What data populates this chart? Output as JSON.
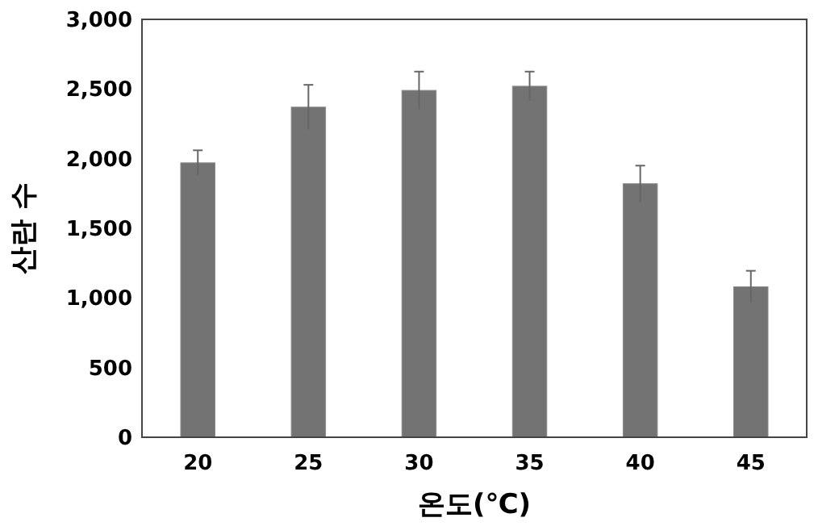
{
  "chart_data": {
    "type": "bar",
    "xlabel": "온도(℃)",
    "ylabel": "산란 수",
    "categories": [
      "20",
      "25",
      "30",
      "35",
      "40",
      "45"
    ],
    "values": [
      1970,
      2370,
      2490,
      2520,
      1820,
      1080
    ],
    "errors": [
      90,
      160,
      135,
      105,
      130,
      115
    ],
    "color": "#737373",
    "ylim": [
      0,
      3000
    ],
    "yticks": [
      {
        "value": 0,
        "label": "0"
      },
      {
        "value": 500,
        "label": "500"
      },
      {
        "value": 1000,
        "label": "1,000"
      },
      {
        "value": 1500,
        "label": "1,500"
      },
      {
        "value": 2000,
        "label": "2,000"
      },
      {
        "value": 2500,
        "label": "2,500"
      },
      {
        "value": 3000,
        "label": "3,000"
      }
    ],
    "grid": false
  }
}
